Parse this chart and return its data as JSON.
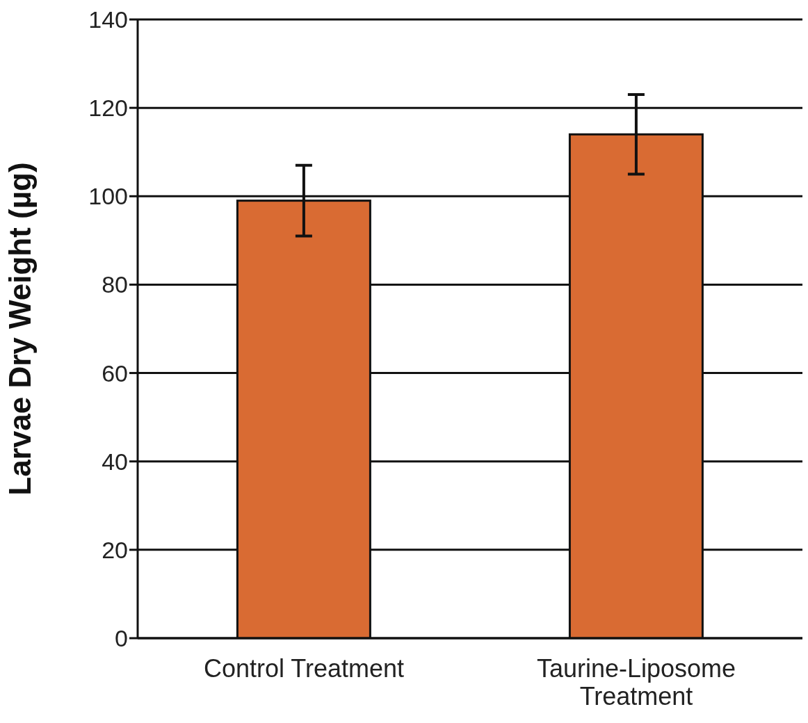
{
  "chart_data": {
    "type": "bar",
    "ylabel": "Larvae Dry Weight (µg)",
    "categories": [
      "Control Treatment",
      "Taurine-Liposome Treatment"
    ],
    "values": [
      99,
      114
    ],
    "errors": [
      8,
      9
    ],
    "color": "#d96b33",
    "ylim": [
      0,
      140
    ],
    "yticks": [
      0,
      20,
      40,
      60,
      80,
      100,
      120,
      140
    ],
    "grid": "y"
  }
}
